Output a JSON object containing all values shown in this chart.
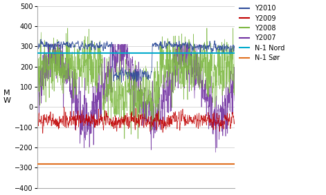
{
  "ylim": [
    -400,
    500
  ],
  "yticks": [
    -400,
    -300,
    -200,
    -100,
    0,
    100,
    200,
    300,
    400,
    500
  ],
  "ylabel": "M\nW",
  "n1_nord": 268,
  "n1_sor": -282,
  "colors": {
    "Y2010": "#2E4C9A",
    "Y2009": "#C00000",
    "Y2008": "#7DB842",
    "Y2007": "#7030A0",
    "N-1 Nord": "#00AACC",
    "N-1 Sor": "#E07020"
  },
  "legend_labels": [
    "Y2010",
    "Y2009",
    "Y2008",
    "Y2007",
    "N-1 Nord",
    "N-1 Sør"
  ],
  "n_points": 2000,
  "background": "#FFFFFF",
  "grid_color": "#C8C8C8"
}
